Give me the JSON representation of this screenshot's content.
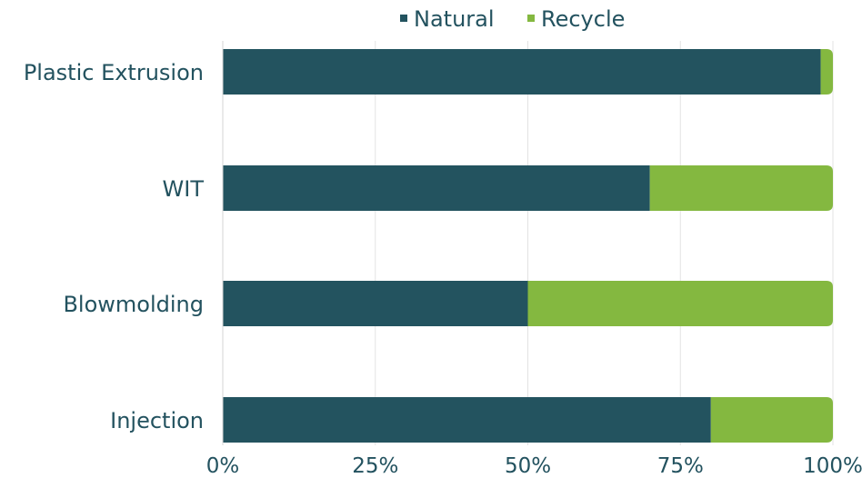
{
  "chart_data": {
    "type": "bar",
    "orientation": "horizontal",
    "stacked": "percent",
    "categories": [
      "Plastic Extrusion",
      "WIT",
      "Blowmolding",
      "Injection"
    ],
    "series": [
      {
        "name": "Natural",
        "values": [
          98,
          70,
          50,
          80
        ]
      },
      {
        "name": "Recycle",
        "values": [
          2,
          30,
          50,
          20
        ]
      }
    ],
    "xlim": [
      0,
      100
    ],
    "xticks": [
      "0%",
      "25%",
      "50%",
      "75%",
      "100%"
    ],
    "grid": true,
    "legend_position": "top",
    "colors": {
      "Natural": "#23535f",
      "Recycle": "#84b840"
    }
  }
}
